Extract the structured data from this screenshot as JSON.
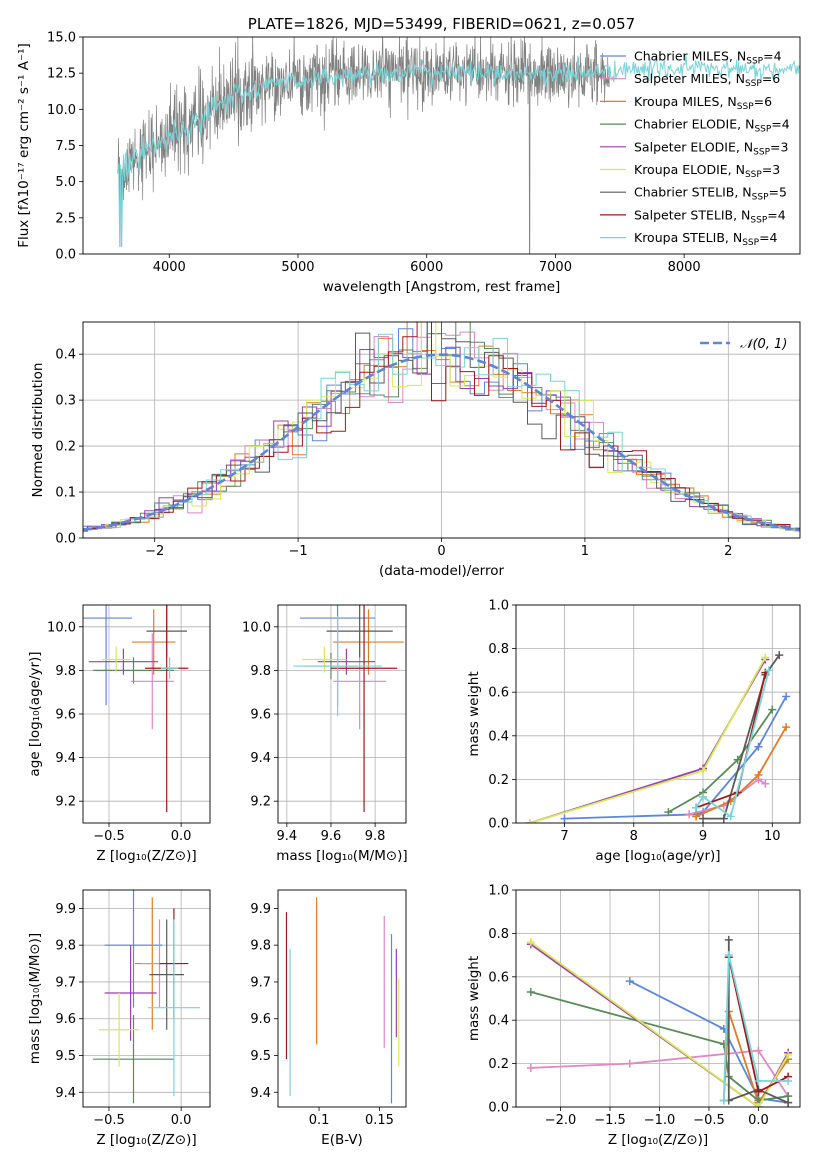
{
  "colors": {
    "blue": "#5b86d9",
    "orange": "#e07b28",
    "green": "#5a8a5a",
    "pink": "#e187c3",
    "purple": "#9a3fb5",
    "yellow": "#d8e85a",
    "gray": "#5a5a5a",
    "darkred": "#9e1a1a",
    "cyan": "#79d4d8",
    "spectrum": "#808080"
  },
  "chart_data": [
    {
      "id": "spectrum",
      "type": "line",
      "title": "PLATE=1826, MJD=53499, FIBERID=0621, z=0.057",
      "xlabel": "wavelength [Angstrom, rest frame]",
      "ylabel": "Flux [fλ10⁻¹⁷ erg cm⁻² s⁻¹ A⁻¹]",
      "xlim": [
        3330,
        8900
      ],
      "ylim": [
        0,
        15
      ],
      "xticks": [
        "4000",
        "5000",
        "6000",
        "7000",
        "8000"
      ],
      "yticks": [
        "0.0",
        "2.5",
        "5.0",
        "7.5",
        "10.0",
        "12.5",
        "15.0"
      ],
      "grid": false,
      "legend_position": "right",
      "legend": [
        {
          "label": "Chabrier MILES, N",
          "sub": "SSP",
          "suffix": "=4",
          "color": "blue"
        },
        {
          "label": "Salpeter MILES, N",
          "sub": "SSP",
          "suffix": "=6",
          "color": "pink"
        },
        {
          "label": "Kroupa MILES, N",
          "sub": "SSP",
          "suffix": "=6",
          "color": "orange"
        },
        {
          "label": "Chabrier ELODIE, N",
          "sub": "SSP",
          "suffix": "=4",
          "color": "green"
        },
        {
          "label": "Salpeter ELODIE, N",
          "sub": "SSP",
          "suffix": "=3",
          "color": "purple"
        },
        {
          "label": "Kroupa ELODIE, N",
          "sub": "SSP",
          "suffix": "=3",
          "color": "yellow"
        },
        {
          "label": "Chabrier STELIB, N",
          "sub": "SSP",
          "suffix": "=5",
          "color": "gray"
        },
        {
          "label": "Salpeter STELIB, N",
          "sub": "SSP",
          "suffix": "=4",
          "color": "darkred"
        },
        {
          "label": "Kroupa STELIB, N",
          "sub": "SSP",
          "suffix": "=4",
          "color": "cyan"
        }
      ],
      "series": [
        {
          "color": "spectrum",
          "x_range": [
            3600,
            7420
          ],
          "continuum": [
            [
              3600,
              6.0
            ],
            [
              3800,
              7.2
            ],
            [
              4000,
              8.0
            ],
            [
              4200,
              9.2
            ],
            [
              4500,
              10.8
            ],
            [
              4800,
              11.8
            ],
            [
              5200,
              12.2
            ],
            [
              5600,
              12.5
            ],
            [
              6000,
              12.6
            ],
            [
              6500,
              12.5
            ],
            [
              7000,
              12.4
            ],
            [
              7400,
              12.5
            ]
          ],
          "noise": 1.1
        },
        {
          "color": "cyan",
          "x_range": [
            3600,
            8900
          ],
          "continuum": [
            [
              3600,
              6.0
            ],
            [
              3800,
              7.2
            ],
            [
              4000,
              8.0
            ],
            [
              4200,
              9.2
            ],
            [
              4500,
              10.8
            ],
            [
              4800,
              11.8
            ],
            [
              5200,
              12.2
            ],
            [
              5600,
              12.5
            ],
            [
              6000,
              12.6
            ],
            [
              6500,
              12.5
            ],
            [
              7000,
              12.4
            ],
            [
              7400,
              12.6
            ],
            [
              8000,
              12.9
            ],
            [
              8500,
              12.7
            ],
            [
              8900,
              12.6
            ]
          ],
          "noise": 0.35
        }
      ]
    },
    {
      "id": "residuals",
      "type": "histogram",
      "xlabel": "(data-model)/error",
      "ylabel": "Normed distribution",
      "xlim": [
        -2.5,
        2.5
      ],
      "ylim": [
        0,
        0.47
      ],
      "xticks": [
        "−2",
        "−1",
        "0",
        "1",
        "2"
      ],
      "yticks": [
        "0.0",
        "0.1",
        "0.2",
        "0.3",
        "0.4"
      ],
      "grid": true,
      "legend_position": "top-right",
      "legend_label": "𝒩(0, 1)",
      "bin_width": 0.1,
      "reference": {
        "type": "normal",
        "mu": 0,
        "sigma": 1,
        "color": "blue"
      },
      "series_colors": [
        "blue",
        "pink",
        "orange",
        "green",
        "purple",
        "yellow",
        "gray",
        "darkred",
        "cyan"
      ]
    },
    {
      "id": "age_vs_Z",
      "type": "errorbar",
      "xlabel": "Z [log₁₀(Z/Z⊙)]",
      "ylabel": "age  [log₁₀(age/yr)]",
      "xlim": [
        -0.68,
        0.2
      ],
      "ylim": [
        9.1,
        10.1
      ],
      "xticks": [
        "−0.5",
        "0.0"
      ],
      "yticks": [
        "9.2",
        "9.4",
        "9.6",
        "9.8",
        "10.0"
      ],
      "grid": true,
      "points": [
        {
          "color": "blue",
          "x": -0.52,
          "xerr": 0.18,
          "y": 10.04,
          "yerr": 0.4
        },
        {
          "color": "orange",
          "x": -0.19,
          "xerr": 0.15,
          "y": 9.93,
          "yerr": 0.15
        },
        {
          "color": "green",
          "x": -0.33,
          "xerr": 0.28,
          "y": 9.8,
          "yerr": 0.06
        },
        {
          "color": "pink",
          "x": -0.2,
          "xerr": 0.15,
          "y": 9.75,
          "yerr": 0.22
        },
        {
          "color": "purple",
          "x": -0.4,
          "xerr": 0.24,
          "y": 9.84,
          "yerr": 0.06
        },
        {
          "color": "yellow",
          "x": -0.45,
          "xerr": 0.1,
          "y": 9.85,
          "yerr": 0.06
        },
        {
          "color": "gray",
          "x": -0.1,
          "xerr": 0.14,
          "y": 9.98,
          "yerr": 0.12
        },
        {
          "color": "darkred",
          "x": -0.1,
          "xerr": 0.15,
          "y": 9.81,
          "yerr": 0.66
        },
        {
          "color": "cyan",
          "x": -0.08,
          "xerr": 0.06,
          "y": 9.81,
          "yerr": 0.05
        }
      ]
    },
    {
      "id": "age_vs_mass",
      "type": "errorbar",
      "xlabel": "mass [log₁₀(M/M⊙)]",
      "xlim": [
        9.36,
        9.94
      ],
      "ylim": [
        9.1,
        10.1
      ],
      "xticks": [
        "9.4",
        "9.6",
        "9.8"
      ],
      "yticks": [
        "9.2",
        "9.4",
        "9.6",
        "9.8",
        "10.0"
      ],
      "grid": true,
      "points": [
        {
          "color": "blue",
          "x": 9.63,
          "xerr": 0.17,
          "y": 10.04,
          "yerr": 0.4
        },
        {
          "color": "orange",
          "x": 9.77,
          "xerr": 0.16,
          "y": 9.93,
          "yerr": 0.15
        },
        {
          "color": "green",
          "x": 9.6,
          "xerr": 0.12,
          "y": 9.82,
          "yerr": 0.06
        },
        {
          "color": "pink",
          "x": 9.73,
          "xerr": 0.12,
          "y": 9.75,
          "yerr": 0.22
        },
        {
          "color": "purple",
          "x": 9.67,
          "xerr": 0.13,
          "y": 9.84,
          "yerr": 0.06
        },
        {
          "color": "yellow",
          "x": 9.57,
          "xerr": 0.1,
          "y": 9.85,
          "yerr": 0.06
        },
        {
          "color": "gray",
          "x": 9.73,
          "xerr": 0.15,
          "y": 9.98,
          "yerr": 0.12
        },
        {
          "color": "darkred",
          "x": 9.75,
          "xerr": 0.15,
          "y": 9.81,
          "yerr": 0.66
        },
        {
          "color": "cyan",
          "x": 9.63,
          "xerr": 0.2,
          "y": 9.82,
          "yerr": 0.23
        }
      ]
    },
    {
      "id": "weight_vs_age",
      "type": "line",
      "xlabel": "age  [log₁₀(age/yr)]",
      "ylabel": "mass weight",
      "xlim": [
        6.3,
        10.4
      ],
      "ylim": [
        0,
        1
      ],
      "xticks": [
        "7",
        "8",
        "9",
        "10"
      ],
      "yticks": [
        "0.0",
        "0.2",
        "0.4",
        "0.6",
        "0.8",
        "1.0"
      ],
      "grid": true,
      "series": [
        {
          "color": "blue",
          "x": [
            7.0,
            8.9,
            9.0,
            9.8,
            10.2
          ],
          "y": [
            0.02,
            0.04,
            0.05,
            0.35,
            0.58
          ]
        },
        {
          "color": "pink",
          "x": [
            8.8,
            9.3,
            9.8,
            9.9
          ],
          "y": [
            0.04,
            0.08,
            0.2,
            0.18
          ]
        },
        {
          "color": "orange",
          "x": [
            8.9,
            9.4,
            9.8,
            10.2
          ],
          "y": [
            0.03,
            0.1,
            0.22,
            0.44
          ]
        },
        {
          "color": "green",
          "x": [
            8.5,
            9.0,
            9.5,
            10.0
          ],
          "y": [
            0.05,
            0.14,
            0.29,
            0.52
          ]
        },
        {
          "color": "purple",
          "x": [
            6.5,
            9.0,
            9.9
          ],
          "y": [
            0.0,
            0.25,
            0.75
          ]
        },
        {
          "color": "yellow",
          "x": [
            6.5,
            9.0,
            9.9
          ],
          "y": [
            0.0,
            0.24,
            0.76
          ]
        },
        {
          "color": "gray",
          "x": [
            9.0,
            9.3,
            9.9,
            10.1
          ],
          "y": [
            0.02,
            0.02,
            0.68,
            0.77
          ]
        },
        {
          "color": "darkred",
          "x": [
            8.9,
            9.5,
            9.9
          ],
          "y": [
            0.07,
            0.14,
            0.69
          ]
        },
        {
          "color": "cyan",
          "x": [
            8.9,
            9.0,
            9.4,
            9.95
          ],
          "y": [
            0.07,
            0.12,
            0.03,
            0.7
          ]
        }
      ]
    },
    {
      "id": "mass_vs_Z",
      "type": "errorbar",
      "xlabel": "Z [log₁₀(Z/Z⊙)]",
      "ylabel": "mass [log₁₀(M/M⊙)]",
      "xlim": [
        -0.68,
        0.2
      ],
      "ylim": [
        9.36,
        9.95
      ],
      "xticks": [
        "−0.5",
        "0.0"
      ],
      "yticks": [
        "9.4",
        "9.5",
        "9.6",
        "9.7",
        "9.8",
        "9.9"
      ],
      "grid": true,
      "points": [
        {
          "color": "blue",
          "x": -0.33,
          "xerr": 0.2,
          "y": 9.8,
          "yerr": 0.17
        },
        {
          "color": "orange",
          "x": -0.2,
          "xerr": 0.12,
          "y": 9.75,
          "yerr": 0.18
        },
        {
          "color": "green",
          "x": -0.33,
          "xerr": 0.28,
          "y": 9.49,
          "yerr": 0.12
        },
        {
          "color": "pink",
          "x": -0.15,
          "xerr": 0.13,
          "y": 9.75,
          "yerr": 0.12
        },
        {
          "color": "purple",
          "x": -0.35,
          "xerr": 0.18,
          "y": 9.67,
          "yerr": 0.13
        },
        {
          "color": "yellow",
          "x": -0.43,
          "xerr": 0.14,
          "y": 9.57,
          "yerr": 0.1
        },
        {
          "color": "gray",
          "x": -0.1,
          "xerr": 0.12,
          "y": 9.72,
          "yerr": 0.15
        },
        {
          "color": "darkred",
          "x": -0.05,
          "xerr": 0.1,
          "y": 9.75,
          "yerr": 0.15
        },
        {
          "color": "cyan",
          "x": -0.05,
          "xerr": 0.18,
          "y": 9.63,
          "yerr": 0.24
        }
      ]
    },
    {
      "id": "mass_vs_ebv",
      "type": "errorbar",
      "xlabel": "E(B-V)",
      "xlim": [
        0.066,
        0.172
      ],
      "ylim": [
        9.36,
        9.95
      ],
      "xticks": [
        "0.1",
        "0.15"
      ],
      "yticks": [
        "9.4",
        "9.5",
        "9.6",
        "9.7",
        "9.8",
        "9.9"
      ],
      "grid": false,
      "points": [
        {
          "color": "darkred",
          "x": 0.073,
          "y": 9.69,
          "yerr": 0.2
        },
        {
          "color": "cyan",
          "x": 0.076,
          "y": 9.59,
          "yerr": 0.2
        },
        {
          "color": "orange",
          "x": 0.098,
          "y": 9.73,
          "yerr": 0.2
        },
        {
          "color": "pink",
          "x": 0.154,
          "y": 9.7,
          "yerr": 0.18
        },
        {
          "color": "blue",
          "x": 0.16,
          "y": 9.6,
          "yerr": 0.23
        },
        {
          "color": "purple",
          "x": 0.164,
          "y": 9.67,
          "yerr": 0.12
        },
        {
          "color": "yellow",
          "x": 0.166,
          "y": 9.59,
          "yerr": 0.12
        }
      ]
    },
    {
      "id": "weight_vs_Z",
      "type": "line",
      "xlabel": "Z [log₁₀(Z/Z⊙)]",
      "ylabel": "mass weight",
      "xlim": [
        -2.45,
        0.42
      ],
      "ylim": [
        0,
        1
      ],
      "xticks": [
        "−2.0",
        "−1.5",
        "−1.0",
        "−0.5",
        "0.0"
      ],
      "yticks": [
        "0.0",
        "0.2",
        "0.4",
        "0.6",
        "0.8",
        "1.0"
      ],
      "grid": true,
      "series": [
        {
          "color": "blue",
          "x": [
            -1.3,
            -0.35,
            0.0,
            0.3
          ],
          "y": [
            0.58,
            0.36,
            0.04,
            0.02
          ]
        },
        {
          "color": "pink",
          "x": [
            -2.3,
            -1.3,
            0.0,
            0.3
          ],
          "y": [
            0.18,
            0.2,
            0.26,
            0.05
          ]
        },
        {
          "color": "orange",
          "x": [
            -0.35,
            -0.3,
            0.0,
            0.3
          ],
          "y": [
            0.03,
            0.44,
            0.02,
            0.22
          ]
        },
        {
          "color": "green",
          "x": [
            -2.3,
            -0.35,
            -0.3,
            0.0,
            0.3
          ],
          "y": [
            0.53,
            0.29,
            0.14,
            0.03,
            0.05
          ]
        },
        {
          "color": "purple",
          "x": [
            -2.3,
            0.0,
            0.3
          ],
          "y": [
            0.75,
            0.0,
            0.25
          ]
        },
        {
          "color": "yellow",
          "x": [
            -2.3,
            0.0,
            0.3
          ],
          "y": [
            0.76,
            0.0,
            0.24
          ]
        },
        {
          "color": "gray",
          "x": [
            -0.3,
            -0.3,
            0.0,
            0.3
          ],
          "y": [
            0.77,
            0.03,
            0.08,
            0.02
          ]
        },
        {
          "color": "darkred",
          "x": [
            -0.3,
            0.0,
            0.3
          ],
          "y": [
            0.69,
            0.07,
            0.14
          ]
        },
        {
          "color": "cyan",
          "x": [
            -0.35,
            -0.3,
            0.0,
            0.3
          ],
          "y": [
            0.03,
            0.7,
            0.12,
            0.12
          ]
        }
      ]
    }
  ]
}
